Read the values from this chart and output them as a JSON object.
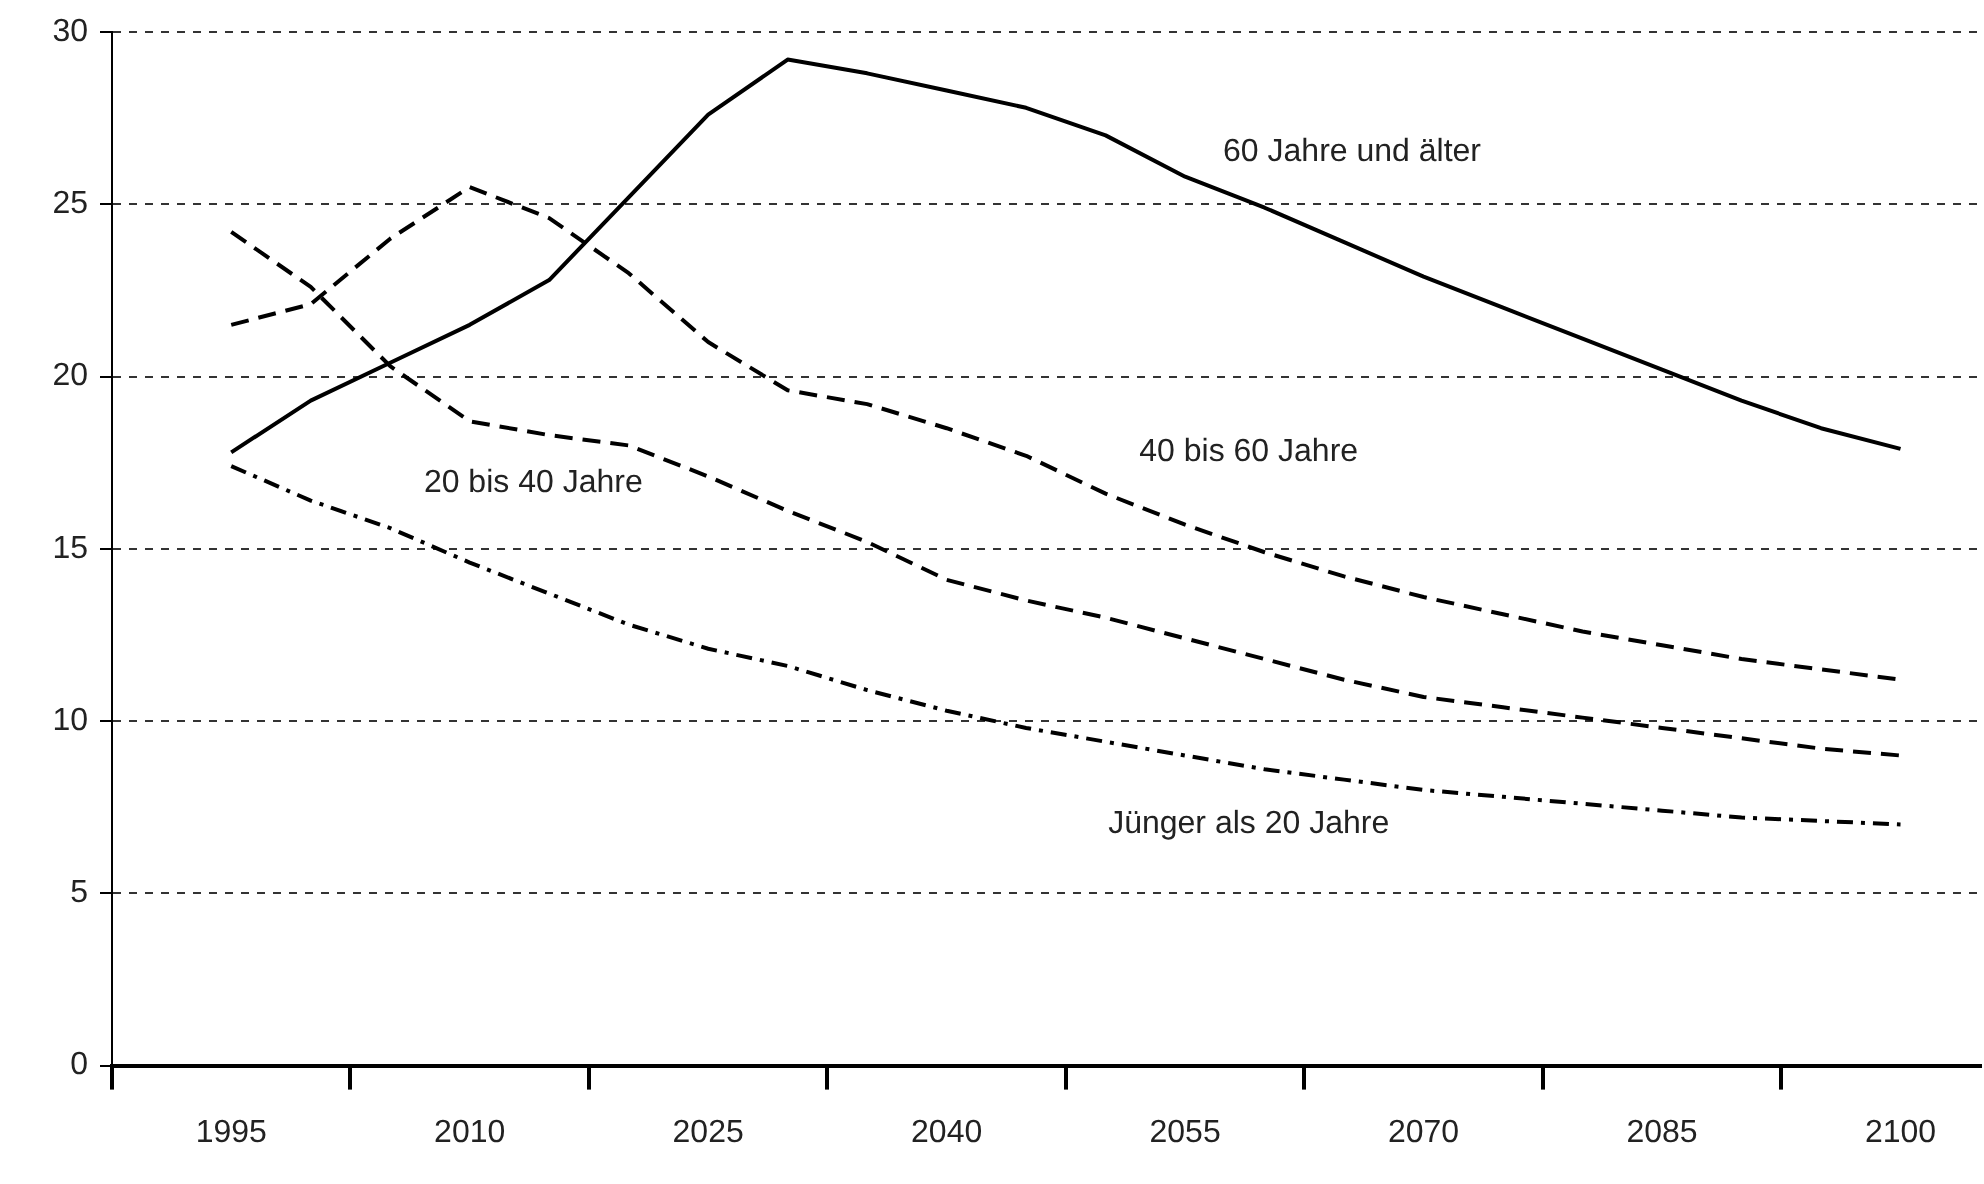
{
  "chart_data": {
    "type": "line",
    "x": [
      1995,
      2000,
      2005,
      2010,
      2015,
      2020,
      2025,
      2030,
      2035,
      2040,
      2045,
      2050,
      2055,
      2060,
      2065,
      2070,
      2075,
      2080,
      2085,
      2090,
      2095,
      2100
    ],
    "series": [
      {
        "name": "60 Jahre und älter",
        "color": "#000000",
        "line_style": "solid",
        "values": [
          17.8,
          19.3,
          20.4,
          21.5,
          22.8,
          25.2,
          27.6,
          29.2,
          28.8,
          28.3,
          27.8,
          27.0,
          25.8,
          24.9,
          23.9,
          22.9,
          22.0,
          21.1,
          20.2,
          19.3,
          18.5,
          17.9
        ]
      },
      {
        "name": "40 bis 60 Jahre",
        "color": "#000000",
        "line_style": "dashed",
        "values": [
          21.5,
          22.1,
          24.0,
          25.5,
          24.6,
          23.0,
          21.0,
          19.6,
          19.2,
          18.5,
          17.7,
          16.6,
          15.7,
          14.9,
          14.2,
          13.6,
          13.1,
          12.6,
          12.2,
          11.8,
          11.5,
          11.2
        ]
      },
      {
        "name": "20 bis 40 Jahre",
        "color": "#000000",
        "line_style": "dashed",
        "values": [
          24.2,
          22.6,
          20.3,
          18.7,
          18.3,
          18.0,
          17.1,
          16.1,
          15.2,
          14.1,
          13.5,
          13.0,
          12.4,
          11.8,
          11.2,
          10.7,
          10.4,
          10.1,
          9.8,
          9.5,
          9.2,
          9.0
        ]
      },
      {
        "name": "Jünger als 20 Jahre",
        "color": "#000000",
        "line_style": "dotted",
        "values": [
          17.4,
          16.4,
          15.6,
          14.6,
          13.7,
          12.8,
          12.1,
          11.6,
          10.9,
          10.3,
          9.8,
          9.4,
          9.0,
          8.6,
          8.3,
          8.0,
          7.8,
          7.6,
          7.4,
          7.2,
          7.1,
          7.0
        ]
      }
    ],
    "xlim": [
      1987.5,
      2105
    ],
    "xticks": [
      {
        "value": 1987.5,
        "label": null
      },
      1995,
      {
        "value": 2002.5,
        "label": null
      },
      2010,
      {
        "value": 2017.5,
        "label": null
      },
      2025,
      {
        "value": 2032.5,
        "label": null
      },
      2040,
      {
        "value": 2047.5,
        "label": null
      },
      2055,
      {
        "value": 2062.5,
        "label": null
      },
      2070,
      {
        "value": 2077.5,
        "label": null
      },
      2085,
      {
        "value": 2092.5,
        "label": null
      },
      2100
    ],
    "ylim": [
      0,
      30
    ],
    "yticks": [
      0,
      5,
      10,
      15,
      20,
      25,
      30
    ],
    "grid": "y",
    "legend": false,
    "marker": "none"
  }
}
